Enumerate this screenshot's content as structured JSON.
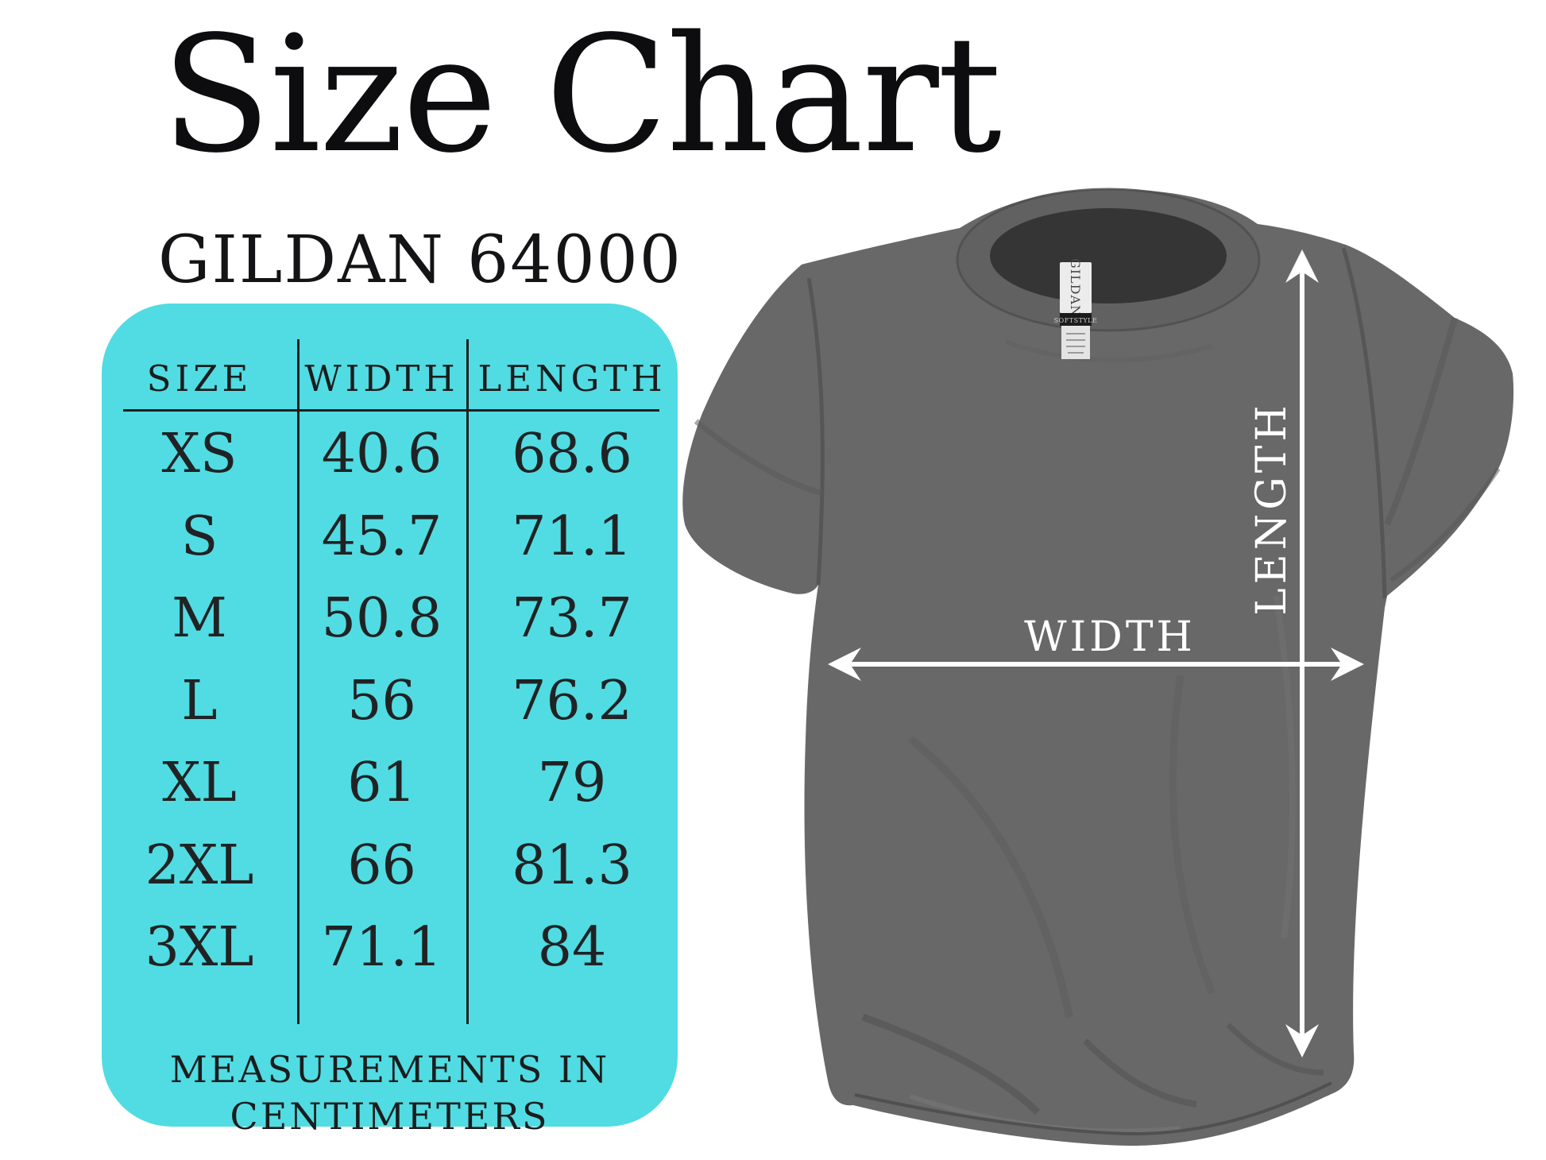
{
  "header": {
    "title": "Size Chart",
    "subtitle": "GILDAN 64000"
  },
  "size_card": {
    "background": "#50dce2",
    "text_color": "#1e2022",
    "headers": [
      "SIZE",
      "WIDTH",
      "LENGTH"
    ],
    "rows": [
      {
        "size": "XS",
        "width": "40.6",
        "length": "68.6"
      },
      {
        "size": "S",
        "width": "45.7",
        "length": "71.1"
      },
      {
        "size": "M",
        "width": "50.8",
        "length": "73.7"
      },
      {
        "size": "L",
        "width": "56",
        "length": "76.2"
      },
      {
        "size": "XL",
        "width": "61",
        "length": "79"
      },
      {
        "size": "2XL",
        "width": "66",
        "length": "81.3"
      },
      {
        "size": "3XL",
        "width": "71.1",
        "length": "84"
      }
    ],
    "footer_lines": [
      "MEASUREMENTS IN",
      "CENTIMETERS"
    ]
  },
  "diagram": {
    "width_label": "WIDTH",
    "length_label": "LENGTH",
    "neck_brand": "GILDAN",
    "neck_style": "SOFTSTYLE",
    "shirt_color": "#686868",
    "arrow_color": "#ffffff"
  },
  "chart_data": {
    "type": "table",
    "title": "Size Chart",
    "subtitle": "GILDAN 64000",
    "columns": [
      "SIZE",
      "WIDTH",
      "LENGTH"
    ],
    "rows": [
      [
        "XS",
        40.6,
        68.6
      ],
      [
        "S",
        45.7,
        71.1
      ],
      [
        "M",
        50.8,
        73.7
      ],
      [
        "L",
        56,
        76.2
      ],
      [
        "XL",
        61,
        79
      ],
      [
        "2XL",
        66,
        81.3
      ],
      [
        "3XL",
        71.1,
        84
      ]
    ],
    "units": "centimeters",
    "note": "MEASUREMENTS IN CENTIMETERS"
  }
}
